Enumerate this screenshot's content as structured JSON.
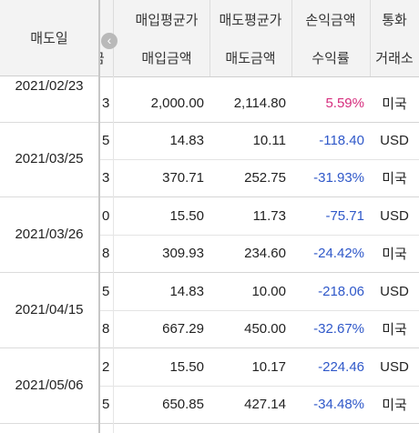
{
  "header": {
    "date_col": "매도일",
    "avg_buy": "매입평균가",
    "avg_sell": "매도평균가",
    "pnl_amount": "손익금액",
    "currency": "통화",
    "partial_left": "금",
    "buy_amount": "매입금액",
    "sell_amount": "매도금액",
    "return_rate": "수익률",
    "exchange": "거래소"
  },
  "toggle_icon": "chevron-left",
  "groups": [
    {
      "date": "2021/02/23",
      "rows": [
        {
          "q": "3",
          "buy": "2,000.00",
          "sell": "2,114.80",
          "pnl": "5.59%",
          "sign": "pos",
          "cx": "미국"
        }
      ]
    },
    {
      "date": "2021/03/25",
      "rows": [
        {
          "q": "5",
          "buy": "14.83",
          "sell": "10.11",
          "pnl": "-118.40",
          "sign": "neg",
          "cx": "USD"
        },
        {
          "q": "3",
          "buy": "370.71",
          "sell": "252.75",
          "pnl": "-31.93%",
          "sign": "neg",
          "cx": "미국"
        }
      ]
    },
    {
      "date": "2021/03/26",
      "rows": [
        {
          "q": "0",
          "buy": "15.50",
          "sell": "11.73",
          "pnl": "-75.71",
          "sign": "neg",
          "cx": "USD"
        },
        {
          "q": "8",
          "buy": "309.93",
          "sell": "234.60",
          "pnl": "-24.42%",
          "sign": "neg",
          "cx": "미국"
        }
      ]
    },
    {
      "date": "2021/04/15",
      "rows": [
        {
          "q": "5",
          "buy": "14.83",
          "sell": "10.00",
          "pnl": "-218.06",
          "sign": "neg",
          "cx": "USD"
        },
        {
          "q": "8",
          "buy": "667.29",
          "sell": "450.00",
          "pnl": "-32.67%",
          "sign": "neg",
          "cx": "미국"
        }
      ]
    },
    {
      "date": "2021/05/06",
      "rows": [
        {
          "q": "2",
          "buy": "15.50",
          "sell": "10.17",
          "pnl": "-224.46",
          "sign": "neg",
          "cx": "USD"
        },
        {
          "q": "5",
          "buy": "650.85",
          "sell": "427.14",
          "pnl": "-34.48%",
          "sign": "neg",
          "cx": "미국"
        }
      ]
    }
  ],
  "colors": {
    "positive": "#d62d7d",
    "negative": "#2f58c9",
    "header_bg": "#f3f3f3"
  }
}
